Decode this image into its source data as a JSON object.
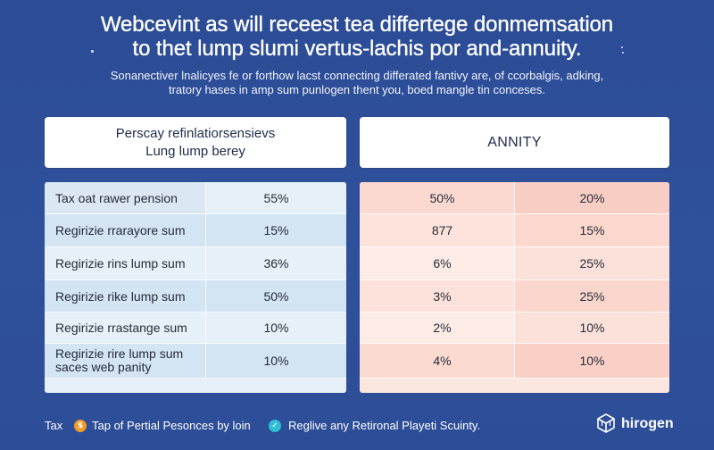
{
  "theme": {
    "background": "#2e4f99",
    "lump_panel": "#e7f0f8",
    "annuity_panel": "#fce6e0",
    "footer_icon_orange": "#f39a2b",
    "footer_icon_teal": "#2ebfd3"
  },
  "title": {
    "line1": "Webcevint as will receest tea differtege donmemsation",
    "line2": "to thet lump slumi vertus-lachis por and-annuity."
  },
  "subtitle": {
    "line1": "Sonanectiver lnalicyes fe or forthow lacst connecting differated fantivy are, of ccorbalgis, adking,",
    "line2": "tratory hases in amp sum punlogen thent you, boed mangle tin conceses."
  },
  "lump_sum": {
    "header_line1": "Perscay refinlatiorsensievs",
    "header_line2": "Lung lump berey",
    "rows": [
      {
        "label": "Tax oat rawer pension",
        "value": "55%"
      },
      {
        "label": "Regirizie rrarayore sum",
        "value": "15%"
      },
      {
        "label": "Regirizie rins lump sum",
        "value": "36%"
      },
      {
        "label": "Regirizie rike lump sum",
        "value": "50%"
      },
      {
        "label": "Regirizie rrastange sum",
        "value": "10%"
      },
      {
        "label": "Regirizie rire lump sum",
        "label_line2": "saces web panity",
        "value": "10%"
      }
    ]
  },
  "annuity": {
    "header": "ANNITY",
    "rows": [
      {
        "col1": "50%",
        "col2": "20%"
      },
      {
        "col1": "877",
        "col2": "15%"
      },
      {
        "col1": "6%",
        "col2": "25%"
      },
      {
        "col1": "3%",
        "col2": "25%"
      },
      {
        "col1": "2%",
        "col2": "10%"
      },
      {
        "col1": "4%",
        "col2": "10%"
      }
    ]
  },
  "footer": {
    "lead": "Tax",
    "item1": {
      "icon": "coin-icon",
      "text": "Tap of Pertial Pesonces by loin"
    },
    "item2": {
      "icon": "check-icon",
      "text": "Reglive any Retironal Playeti Scuinty."
    }
  },
  "brand": {
    "icon": "cube-icon",
    "name": "hirogen"
  }
}
